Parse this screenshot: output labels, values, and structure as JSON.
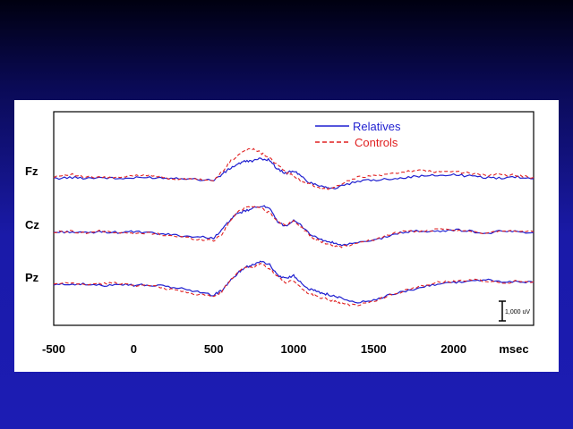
{
  "chart_data": {
    "type": "line",
    "title": "",
    "xlabel": "msec",
    "ylabel": "",
    "xlim": [
      -500,
      2500
    ],
    "xticks": [
      -500,
      0,
      500,
      1000,
      1500,
      2000
    ],
    "x_unit": "msec",
    "channels": [
      "Fz",
      "Cz",
      "Pz"
    ],
    "legend": {
      "position": "top-right",
      "entries": [
        "Relatives",
        "Controls"
      ]
    },
    "scale_bar": {
      "label": "1,000 uV"
    },
    "colors": {
      "Relatives": "#1f1fd0",
      "Controls": "#e02020"
    },
    "series": [
      {
        "name": "Relatives",
        "channel": "Fz",
        "x": [
          -500,
          -400,
          -300,
          -200,
          -100,
          0,
          100,
          200,
          300,
          400,
          500,
          550,
          600,
          650,
          700,
          750,
          800,
          850,
          900,
          950,
          1000,
          1050,
          1100,
          1150,
          1200,
          1250,
          1300,
          1400,
          1500,
          1600,
          1700,
          1800,
          1900,
          2000,
          2100,
          2200,
          2300,
          2400,
          2500
        ],
        "y": [
          0,
          0.2,
          0.1,
          0.2,
          0,
          0.1,
          0.2,
          0.1,
          0.1,
          -0.1,
          -0.2,
          0.6,
          1.5,
          2.2,
          2.6,
          2.7,
          3.0,
          2.8,
          1.4,
          0.8,
          1.2,
          0.3,
          -0.6,
          -0.9,
          -1.2,
          -1.5,
          -1.1,
          -0.4,
          -0.2,
          0,
          0.2,
          0.4,
          0.5,
          0.6,
          0.4,
          0.2,
          0.1,
          0.3,
          0
        ]
      },
      {
        "name": "Controls",
        "channel": "Fz",
        "x": [
          -500,
          -400,
          -300,
          -200,
          -100,
          0,
          100,
          200,
          300,
          400,
          500,
          550,
          600,
          650,
          700,
          750,
          800,
          850,
          900,
          950,
          1000,
          1050,
          1100,
          1150,
          1200,
          1250,
          1300,
          1400,
          1500,
          1600,
          1700,
          1800,
          1900,
          2000,
          2100,
          2200,
          2300,
          2400,
          2500
        ],
        "y": [
          0.3,
          0.7,
          0.2,
          0.2,
          0.1,
          0.5,
          0.6,
          0.1,
          -0.1,
          -0.1,
          -0.3,
          1.0,
          2.5,
          3.5,
          4.3,
          4.5,
          3.8,
          3.2,
          2.0,
          1.0,
          0.4,
          -0.3,
          -0.8,
          -1.3,
          -1.6,
          -1.3,
          -0.8,
          0.3,
          0.4,
          0.7,
          1.1,
          1.2,
          1.0,
          1.1,
          0.8,
          0.5,
          0.6,
          0.5,
          0.2
        ]
      },
      {
        "name": "Relatives",
        "channel": "Cz",
        "x": [
          -500,
          -400,
          -300,
          -200,
          -100,
          0,
          100,
          200,
          300,
          400,
          500,
          550,
          600,
          650,
          700,
          750,
          800,
          850,
          900,
          950,
          1000,
          1050,
          1100,
          1150,
          1200,
          1250,
          1300,
          1400,
          1500,
          1600,
          1700,
          1800,
          1900,
          2000,
          2100,
          2200,
          2300,
          2400,
          2500
        ],
        "y": [
          0,
          0.1,
          -0.1,
          0.1,
          0,
          0.1,
          -0.1,
          -0.3,
          -0.5,
          -0.7,
          -0.8,
          0.3,
          1.8,
          2.8,
          3.2,
          3.6,
          4.0,
          3.5,
          1.5,
          1.0,
          1.7,
          1.0,
          -0.2,
          -0.9,
          -1.3,
          -1.6,
          -1.9,
          -1.6,
          -1.2,
          -0.5,
          0.1,
          0.2,
          0.1,
          0.4,
          0.2,
          -0.2,
          0.2,
          0.1,
          0
        ]
      },
      {
        "name": "Controls",
        "channel": "Cz",
        "x": [
          -500,
          -400,
          -300,
          -200,
          -100,
          0,
          100,
          200,
          300,
          400,
          500,
          550,
          600,
          650,
          700,
          750,
          800,
          850,
          900,
          950,
          1000,
          1050,
          1100,
          1150,
          1200,
          1250,
          1300,
          1400,
          1500,
          1600,
          1700,
          1800,
          1900,
          2000,
          2100,
          2200,
          2300,
          2400,
          2500
        ],
        "y": [
          0,
          0.2,
          -0.1,
          0.2,
          0,
          -0.2,
          -0.1,
          -0.4,
          -0.7,
          -1.0,
          -1.2,
          -0.3,
          1.6,
          3.0,
          3.8,
          3.9,
          3.6,
          2.9,
          1.6,
          1.1,
          1.7,
          0.8,
          -0.5,
          -1.2,
          -1.6,
          -2.0,
          -2.1,
          -1.7,
          -1.1,
          -0.3,
          0.2,
          0.1,
          0.4,
          0.3,
          0.1,
          -0.1,
          0.3,
          0.2,
          0.1
        ]
      },
      {
        "name": "Relatives",
        "channel": "Pz",
        "x": [
          -500,
          -400,
          -300,
          -200,
          -100,
          0,
          100,
          200,
          300,
          400,
          500,
          550,
          600,
          650,
          700,
          750,
          800,
          850,
          900,
          950,
          1000,
          1050,
          1100,
          1150,
          1200,
          1250,
          1300,
          1400,
          1500,
          1600,
          1700,
          1800,
          1900,
          2000,
          2100,
          2200,
          2300,
          2400,
          2500
        ],
        "y": [
          0,
          0.2,
          0.1,
          -0.1,
          0.2,
          0,
          0,
          -0.2,
          -0.5,
          -1.0,
          -1.5,
          -0.8,
          0.5,
          1.8,
          2.7,
          3.1,
          3.6,
          3.0,
          1.5,
          1.0,
          1.4,
          0.3,
          -0.6,
          -1.0,
          -1.3,
          -1.6,
          -2.0,
          -2.6,
          -2.3,
          -1.5,
          -0.9,
          -0.3,
          0.2,
          0.4,
          0.6,
          0.8,
          0.4,
          0.6,
          0.4
        ]
      },
      {
        "name": "Controls",
        "channel": "Pz",
        "x": [
          -500,
          -400,
          -300,
          -200,
          -100,
          0,
          100,
          200,
          300,
          400,
          500,
          550,
          600,
          650,
          700,
          750,
          800,
          850,
          900,
          950,
          1000,
          1050,
          1100,
          1150,
          1200,
          1250,
          1300,
          1400,
          1500,
          1600,
          1700,
          1800,
          1900,
          2000,
          2100,
          2200,
          2300,
          2400,
          2500
        ],
        "y": [
          0.1,
          0.3,
          0.1,
          0.2,
          0.3,
          0,
          -0.1,
          -0.5,
          -0.9,
          -1.4,
          -1.7,
          -1.0,
          0.6,
          2.0,
          2.8,
          2.6,
          3.3,
          2.4,
          1.2,
          0.4,
          0.6,
          -0.5,
          -1.3,
          -1.7,
          -2.0,
          -2.4,
          -2.8,
          -3.0,
          -2.4,
          -1.5,
          -0.8,
          -0.1,
          0.4,
          0.5,
          0.8,
          0.6,
          0.3,
          0.6,
          0.5
        ]
      }
    ]
  }
}
